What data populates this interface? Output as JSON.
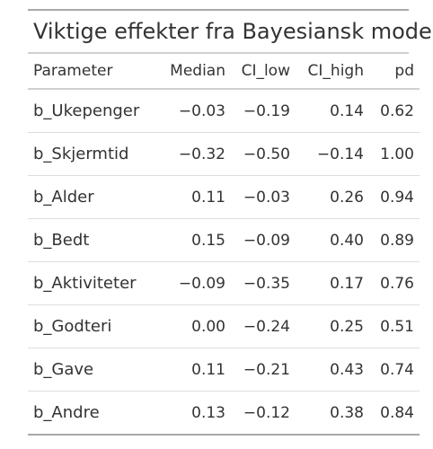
{
  "table": {
    "caption": "Viktige effekter fra Bayesiansk modell",
    "headers": {
      "parameter": "Parameter",
      "median": "Median",
      "ci_low": "CI_low",
      "ci_high": "CI_high",
      "pd": "pd"
    },
    "rows": [
      {
        "parameter": "b_Ukepenger",
        "median": "−0.03",
        "ci_low": "−0.19",
        "ci_high": "0.14",
        "pd": "0.62"
      },
      {
        "parameter": "b_Skjermtid",
        "median": "−0.32",
        "ci_low": "−0.50",
        "ci_high": "−0.14",
        "pd": "1.00"
      },
      {
        "parameter": "b_Alder",
        "median": "0.11",
        "ci_low": "−0.03",
        "ci_high": "0.26",
        "pd": "0.94"
      },
      {
        "parameter": "b_Bedt",
        "median": "0.15",
        "ci_low": "−0.09",
        "ci_high": "0.40",
        "pd": "0.89"
      },
      {
        "parameter": "b_Aktiviteter",
        "median": "−0.09",
        "ci_low": "−0.35",
        "ci_high": "0.17",
        "pd": "0.76"
      },
      {
        "parameter": "b_Godteri",
        "median": "0.00",
        "ci_low": "−0.24",
        "ci_high": "0.25",
        "pd": "0.51"
      },
      {
        "parameter": "b_Gave",
        "median": "0.11",
        "ci_low": "−0.21",
        "ci_high": "0.43",
        "pd": "0.74"
      },
      {
        "parameter": "b_Andre",
        "median": "0.13",
        "ci_low": "−0.12",
        "ci_high": "0.38",
        "pd": "0.84"
      }
    ]
  },
  "colors": {
    "text": "#333333",
    "rule_strong": "#a8a8a8",
    "rule_light": "#dddddd"
  }
}
